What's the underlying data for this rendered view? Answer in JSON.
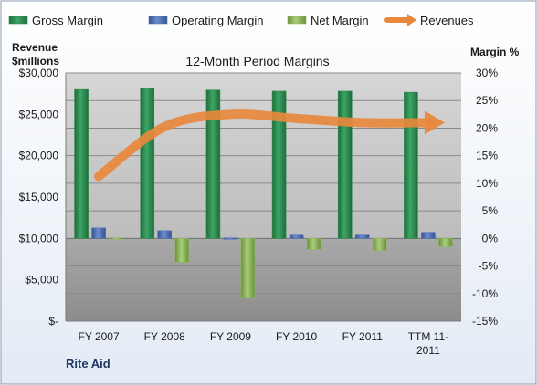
{
  "chart_data": {
    "type": "bar",
    "title": "12-Month Period Margins",
    "company": "Rite Aid",
    "y_left_label": [
      "Revenue",
      "$millions"
    ],
    "y_right_label": "Margin %",
    "categories": [
      "FY 2007",
      "FY 2008",
      "FY 2009",
      "FY 2010",
      "FY 2011",
      "TTM 11-2011"
    ],
    "ylim_left": [
      0,
      30000
    ],
    "ylim_right": [
      -15,
      30
    ],
    "left_ticks": [
      "$30,000",
      "$25,000",
      "$20,000",
      "$15,000",
      "$10,000",
      "$5,000",
      "$-"
    ],
    "right_ticks": [
      "30%",
      "25%",
      "20%",
      "15%",
      "10%",
      "5%",
      "0%",
      "-5%",
      "-10%",
      "-15%"
    ],
    "grid": true,
    "legend_position": "top",
    "series": [
      {
        "name": "Gross Margin",
        "type": "bar",
        "axis": "right",
        "color": "#2e8b4f",
        "values": [
          27,
          27.3,
          26.9,
          26.7,
          26.7,
          26.5
        ]
      },
      {
        "name": "Operating Margin",
        "type": "bar",
        "axis": "right",
        "color": "#4f72b8",
        "values": [
          1.9,
          1.4,
          0.1,
          0.6,
          0.6,
          1.1
        ]
      },
      {
        "name": "Net Margin",
        "type": "bar",
        "axis": "right",
        "color": "#8fb860",
        "values": [
          0.1,
          -4.3,
          -10.8,
          -2.0,
          -2.2,
          -1.5
        ]
      },
      {
        "name": "Revenues",
        "type": "line",
        "axis": "left",
        "color": "#e8883c",
        "values": [
          17500,
          23500,
          25000,
          24500,
          24000,
          24000
        ]
      }
    ]
  }
}
